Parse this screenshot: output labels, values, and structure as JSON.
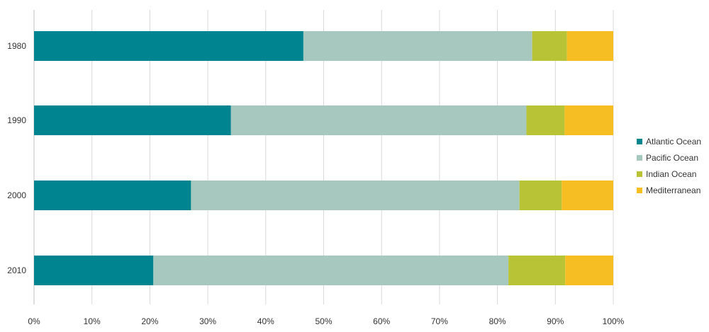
{
  "chart_data": {
    "type": "bar",
    "orientation": "horizontal",
    "stacked": "percent",
    "categories": [
      "1980",
      "1990",
      "2000",
      "2010"
    ],
    "series": [
      {
        "name": "Atlantic Ocean",
        "color": "#00848f",
        "values": [
          46.5,
          34.0,
          27.1,
          20.6
        ]
      },
      {
        "name": "Pacific Ocean",
        "color": "#a6c8be",
        "values": [
          39.5,
          51.0,
          56.7,
          61.3
        ]
      },
      {
        "name": "Indian Ocean",
        "color": "#b8c435",
        "values": [
          6.0,
          6.6,
          7.3,
          9.8
        ]
      },
      {
        "name": "Mediterranean",
        "color": "#f6be23",
        "values": [
          8.0,
          8.4,
          8.9,
          8.3
        ]
      }
    ],
    "xlim": [
      0,
      100
    ],
    "xticks": [
      "0%",
      "10%",
      "20%",
      "30%",
      "40%",
      "50%",
      "60%",
      "70%",
      "80%",
      "90%",
      "100%"
    ],
    "xtick_values": [
      0,
      10,
      20,
      30,
      40,
      50,
      60,
      70,
      80,
      90,
      100
    ],
    "grid": "vertical",
    "legend_position": "right",
    "title": "",
    "xlabel": "",
    "ylabel": ""
  }
}
